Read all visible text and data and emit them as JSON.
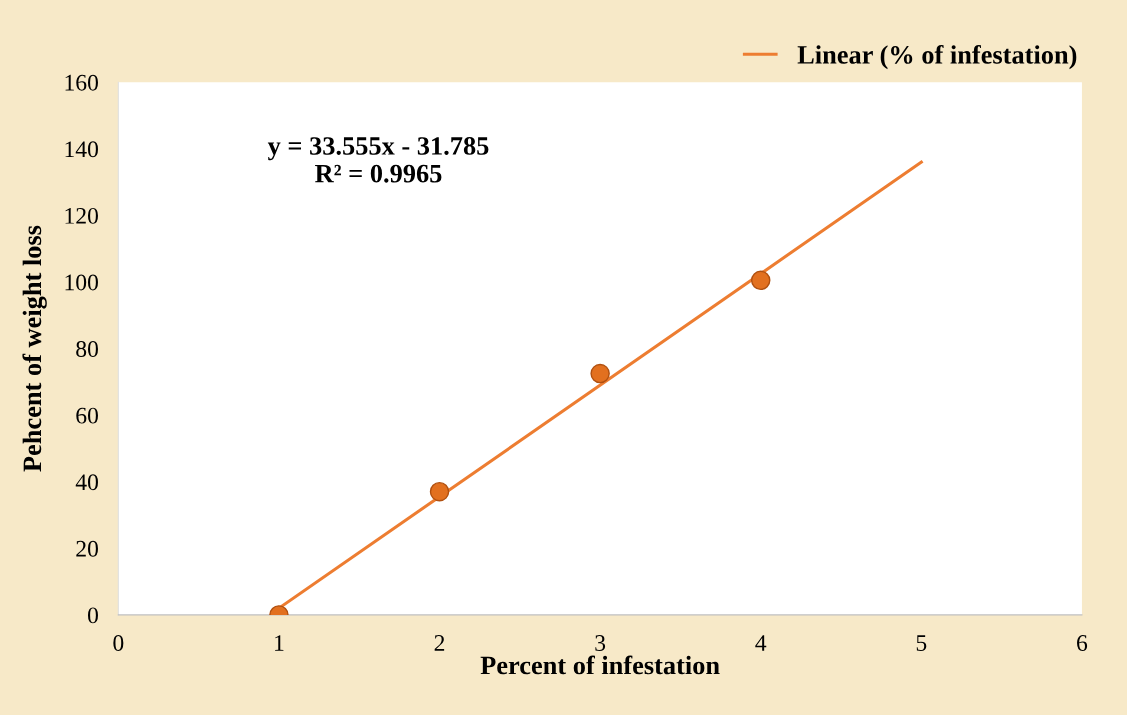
{
  "chart_data": {
    "type": "scatter",
    "xlabel": "Percent of infestation",
    "ylabel": "Pehcent of weight loss",
    "annotations": [
      "y = 33.555x - 31.785\nR² = 0.9965"
    ],
    "series": [
      {
        "color": "#e2701f",
        "x": [
          1,
          2,
          3,
          4
        ],
        "values": [
          0,
          37,
          72.5,
          100.5
        ],
        "marker": "circle"
      },
      {
        "type": "line",
        "name": "Linear (% of infestation)",
        "color": "#ed7d31",
        "x": [
          1,
          5
        ],
        "values": [
          2,
          136
        ],
        "marker": "none"
      }
    ],
    "xlim": [
      0,
      6
    ],
    "xticks": [
      0,
      1,
      2,
      3,
      4,
      5,
      6
    ],
    "ylim": [
      0,
      160
    ],
    "yticks": [
      0,
      20,
      40,
      60,
      80,
      100,
      120,
      140,
      160
    ],
    "grid": false,
    "legend": "top right"
  }
}
